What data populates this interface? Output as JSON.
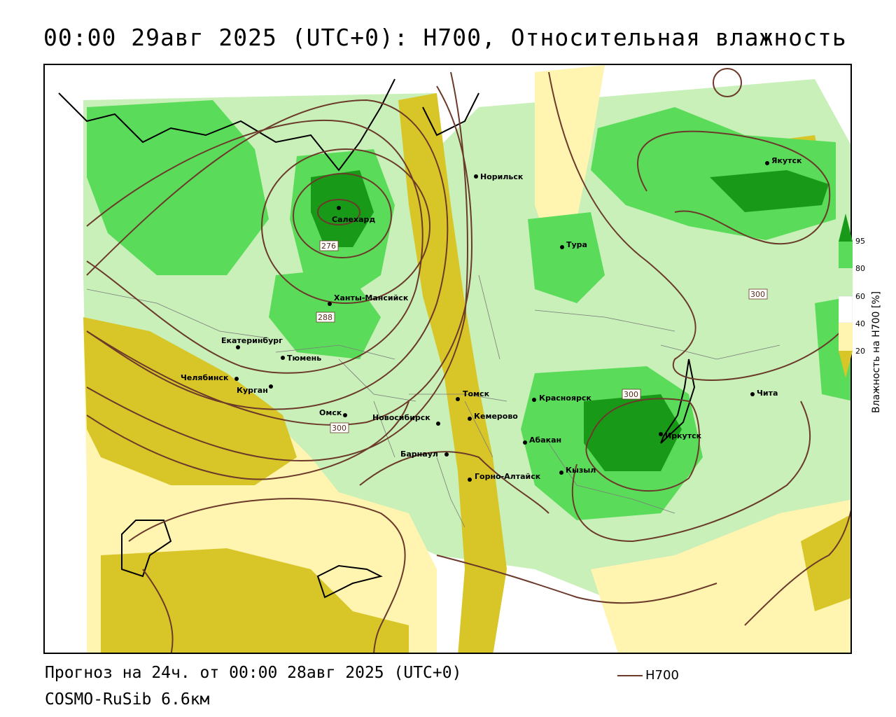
{
  "header": {
    "title": "00:00 29авг 2025 (UTC+0): H700, Относительная влажность"
  },
  "footer": {
    "forecast": "Прогноз на 24ч. от 00:00 28авг 2025 (UTC+0)",
    "model": "COSMO-RuSib 6.6км",
    "contour_key": "H700"
  },
  "colors": {
    "very_dry": "#d8c628",
    "dry": "#fff4b0",
    "mid": "#ffffff",
    "moist": "#c8f0b8",
    "wet": "#5adc5a",
    "very_wet": "#189a18",
    "contour": "#6b3a2a"
  },
  "legend": {
    "title": "Влажность на H700 [%]",
    "ticks": [
      "95",
      "80",
      "60",
      "40",
      "20"
    ]
  },
  "contour_labels": [
    "276",
    "288",
    "300",
    "300",
    "300"
  ],
  "cities": [
    {
      "name": "Норильск"
    },
    {
      "name": "Салехард"
    },
    {
      "name": "Ханты-Мансийск"
    },
    {
      "name": "Екатеринбург"
    },
    {
      "name": "Тюмень"
    },
    {
      "name": "Челябинск"
    },
    {
      "name": "Курган"
    },
    {
      "name": "Омск"
    },
    {
      "name": "Новосибирск"
    },
    {
      "name": "Томск"
    },
    {
      "name": "Кемерово"
    },
    {
      "name": "Барнаул"
    },
    {
      "name": "Горно-Алтайск"
    },
    {
      "name": "Красноярск"
    },
    {
      "name": "Абакан"
    },
    {
      "name": "Кызыл"
    },
    {
      "name": "Иркутск"
    },
    {
      "name": "Чита"
    },
    {
      "name": "Тура"
    },
    {
      "name": "Якутск"
    }
  ]
}
